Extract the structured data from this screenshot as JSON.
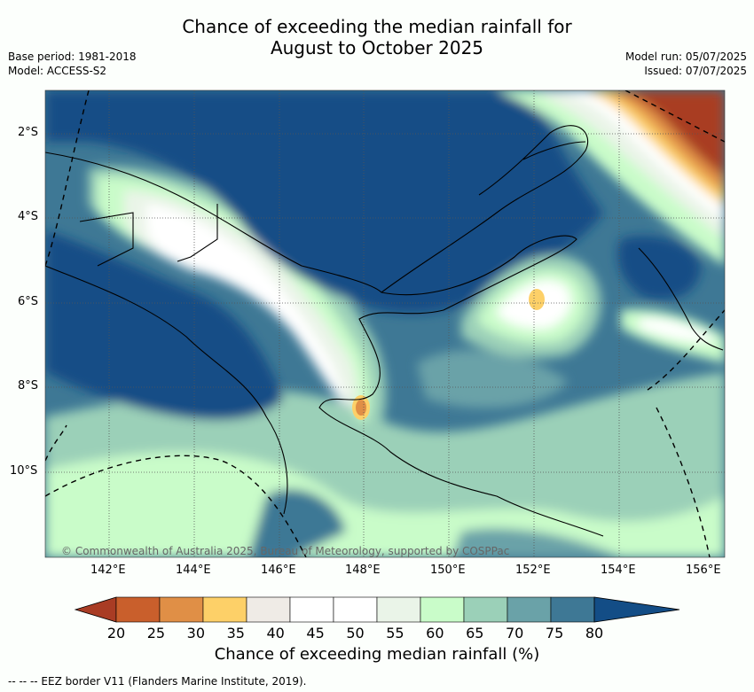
{
  "title_line1": "Chance of exceeding the median rainfall for",
  "title_line2": "August to October 2025",
  "base_period": "Base period: 1981-2018",
  "model": "Model: ACCESS-S2",
  "model_run": "Model run: 05/07/2025",
  "issued": "Issued: 07/07/2025",
  "copyright": "© Commonwealth of Australia 2025, Bureau of Meteorology, supported by COSPPac",
  "lat_ticks": [
    "2°S",
    "4°S",
    "6°S",
    "8°S",
    "10°S"
  ],
  "lon_ticks": [
    "142°E",
    "144°E",
    "146°E",
    "148°E",
    "150°E",
    "152°E",
    "154°E",
    "156°E"
  ],
  "colorbar": {
    "ticks": [
      "20",
      "25",
      "30",
      "35",
      "40",
      "45",
      "50",
      "55",
      "60",
      "65",
      "70",
      "75",
      "80"
    ],
    "colors": [
      "#a93c24",
      "#c95f2c",
      "#e08f46",
      "#fdd068",
      "#efebe6",
      "#ffffff",
      "#ffffff",
      "#eaf4e8",
      "#c9fcc9",
      "#9bd0b8",
      "#6aa2a8",
      "#3e7895",
      "#134d86"
    ],
    "label": "Chance of exceeding median rainfall (%)"
  },
  "footnote": "--  --  -- EEZ border V11 (Flanders Marine Institute, 2019)."
}
